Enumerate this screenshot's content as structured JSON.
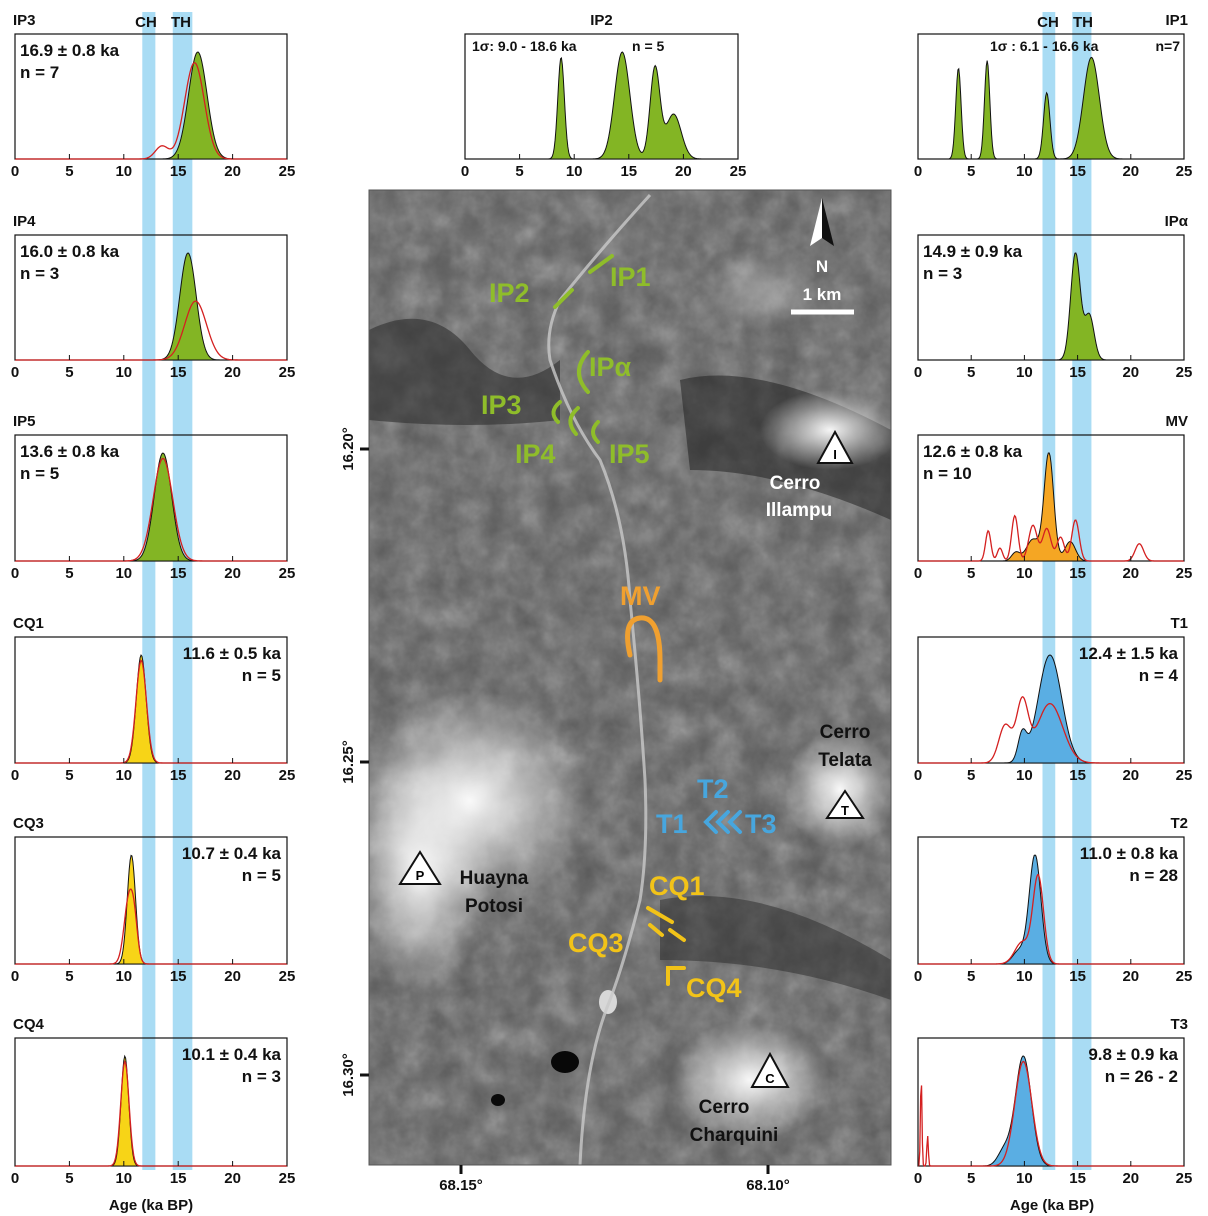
{
  "colors": {
    "band": "#a9dcf4",
    "green": "#83b524",
    "orange": "#f5a623",
    "yellow": "#f7d417",
    "blue": "#5aaee3",
    "red": "#d42020",
    "map_green": "#8fbd2a",
    "map_orange": "#f0a030",
    "map_yellow": "#f2c318",
    "map_blue": "#47a6de"
  },
  "stadial_bands": {
    "CH_label": "CH",
    "TH_label": "TH",
    "CH": [
      11.7,
      12.9
    ],
    "TH": [
      14.5,
      16.3
    ]
  },
  "axis": {
    "label": "Age (ka BP)",
    "xlim": [
      0,
      25
    ],
    "ticks": [
      "0",
      "5",
      "10",
      "15",
      "20",
      "25"
    ]
  },
  "chart_data": [
    {
      "id": "IP3",
      "type": "area",
      "title": "IP3",
      "summary": "16.9 ± 0.8 ka",
      "count": "n = 7",
      "fill": "green",
      "peaks": [
        [
          16.8,
          0.85,
          1
        ]
      ],
      "red": [
        [
          16.5,
          0.9,
          0.9
        ],
        [
          13.5,
          0.6,
          0.12
        ]
      ]
    },
    {
      "id": "IP4",
      "type": "area",
      "title": "IP4",
      "summary": "16.0 ± 0.8 ka",
      "count": "n = 3",
      "fill": "green",
      "peaks": [
        [
          15.9,
          0.75,
          1
        ]
      ],
      "red": [
        [
          16.6,
          1.0,
          0.55
        ]
      ]
    },
    {
      "id": "IP5",
      "type": "area",
      "title": "IP5",
      "summary": "13.6 ± 0.8 ka",
      "count": "n = 5",
      "fill": "green",
      "peaks": [
        [
          13.6,
          0.8,
          1
        ]
      ],
      "red": [
        [
          13.6,
          0.9,
          0.95
        ]
      ]
    },
    {
      "id": "CQ1",
      "type": "area",
      "title": "CQ1",
      "summary": "11.6 ± 0.5 ka",
      "count": "n = 5",
      "fill": "yellow",
      "peaks": [
        [
          11.6,
          0.45,
          1
        ]
      ],
      "red": [
        [
          11.6,
          0.48,
          0.95
        ]
      ]
    },
    {
      "id": "CQ3",
      "type": "area",
      "title": "CQ3",
      "summary": "10.7 ± 0.4 ka",
      "count": "n = 5",
      "fill": "yellow",
      "peaks": [
        [
          10.7,
          0.38,
          1
        ]
      ],
      "red": [
        [
          10.5,
          0.45,
          0.62
        ],
        [
          11.0,
          0.3,
          0.2
        ]
      ]
    },
    {
      "id": "CQ4",
      "type": "area",
      "title": "CQ4",
      "summary": "10.1 ± 0.4 ka",
      "count": "n = 3",
      "fill": "yellow",
      "peaks": [
        [
          10.1,
          0.35,
          1
        ]
      ],
      "red": [
        [
          10.1,
          0.38,
          0.95
        ]
      ]
    },
    {
      "id": "IP2",
      "type": "area",
      "title": "IP2",
      "summary": "1σ: 9.0 - 18.6 ka",
      "count": "n = 5",
      "fill": "green",
      "peaks": [
        [
          8.8,
          0.3,
          0.95
        ],
        [
          14.4,
          0.7,
          1
        ],
        [
          17.4,
          0.45,
          0.85
        ],
        [
          19.1,
          0.7,
          0.42
        ]
      ],
      "red": []
    },
    {
      "id": "IP1",
      "type": "area",
      "title": "IP1",
      "summary": "1σ : 6.1 - 16.6 ka",
      "count": "n=7",
      "fill": "green",
      "peaks": [
        [
          3.8,
          0.25,
          0.85
        ],
        [
          6.5,
          0.25,
          0.92
        ],
        [
          12.1,
          0.3,
          0.62
        ],
        [
          16.3,
          0.75,
          0.95
        ]
      ],
      "red": []
    },
    {
      "id": "IPa",
      "type": "area",
      "title": "IPα",
      "summary": "14.9 ± 0.9 ka",
      "count": "n = 3",
      "fill": "green",
      "peaks": [
        [
          14.8,
          0.45,
          1
        ],
        [
          16.1,
          0.45,
          0.42
        ]
      ],
      "red": []
    },
    {
      "id": "MV",
      "type": "area",
      "title": "MV",
      "summary": "12.6 ± 0.8 ka",
      "count": "n = 10",
      "fill": "orange",
      "peaks": [
        [
          12.3,
          0.45,
          1
        ],
        [
          10.8,
          0.6,
          0.2
        ],
        [
          14.3,
          0.5,
          0.18
        ],
        [
          9.2,
          0.4,
          0.08
        ]
      ],
      "red": [
        [
          6.6,
          0.25,
          0.28
        ],
        [
          7.7,
          0.25,
          0.12
        ],
        [
          9.1,
          0.3,
          0.42
        ],
        [
          10.8,
          0.4,
          0.33
        ],
        [
          12.1,
          0.4,
          0.3
        ],
        [
          13.4,
          0.35,
          0.22
        ],
        [
          14.8,
          0.35,
          0.38
        ],
        [
          20.8,
          0.4,
          0.16
        ]
      ]
    },
    {
      "id": "T1",
      "type": "area",
      "title": "T1",
      "summary": "12.4 ± 1.5 ka",
      "count": "n = 4",
      "fill": "blue",
      "peaks": [
        [
          12.4,
          1.1,
          1
        ],
        [
          9.8,
          0.4,
          0.25
        ]
      ],
      "red": [
        [
          8.2,
          0.6,
          0.35
        ],
        [
          9.8,
          0.55,
          0.55
        ],
        [
          12.4,
          1.2,
          0.55
        ]
      ]
    },
    {
      "id": "T2",
      "type": "area",
      "title": "T2",
      "summary": "11.0 ± 0.8 ka",
      "count": "n = 28",
      "fill": "blue",
      "peaks": [
        [
          11.0,
          0.55,
          1
        ],
        [
          9.5,
          0.6,
          0.12
        ]
      ],
      "red": [
        [
          11.3,
          0.5,
          0.8
        ],
        [
          9.8,
          0.7,
          0.2
        ]
      ]
    },
    {
      "id": "T3",
      "type": "area",
      "title": "T3",
      "summary": "9.8 ± 0.9 ka",
      "count": "n = 26 - 2",
      "fill": "blue",
      "peaks": [
        [
          9.9,
          0.75,
          1
        ],
        [
          8.1,
          0.6,
          0.14
        ]
      ],
      "red": [
        [
          9.9,
          0.8,
          0.95
        ],
        [
          0.3,
          0.07,
          0.82
        ],
        [
          0.9,
          0.07,
          0.28
        ]
      ]
    }
  ],
  "map": {
    "north_label": "N",
    "scale_label": "1 km",
    "lat_labels": [
      "16.20°",
      "16.25°",
      "16.30°"
    ],
    "lon_labels": [
      "68.15°",
      "68.10°"
    ],
    "peaks": [
      {
        "symbol": "I",
        "line1": "Cerro",
        "line2": "Illampu"
      },
      {
        "symbol": "T",
        "line1": "Cerro",
        "line2": "Telata"
      },
      {
        "symbol": "P",
        "line1": "Huayna",
        "line2": "Potosi"
      },
      {
        "symbol": "C",
        "line1": "Cerro",
        "line2": "Charquini"
      }
    ],
    "moraine_labels": [
      "IP1",
      "IP2",
      "IPα",
      "IP3",
      "IP4",
      "IP5",
      "MV",
      "T2",
      "T1",
      "T3",
      "CQ1",
      "CQ3",
      "CQ4"
    ]
  }
}
